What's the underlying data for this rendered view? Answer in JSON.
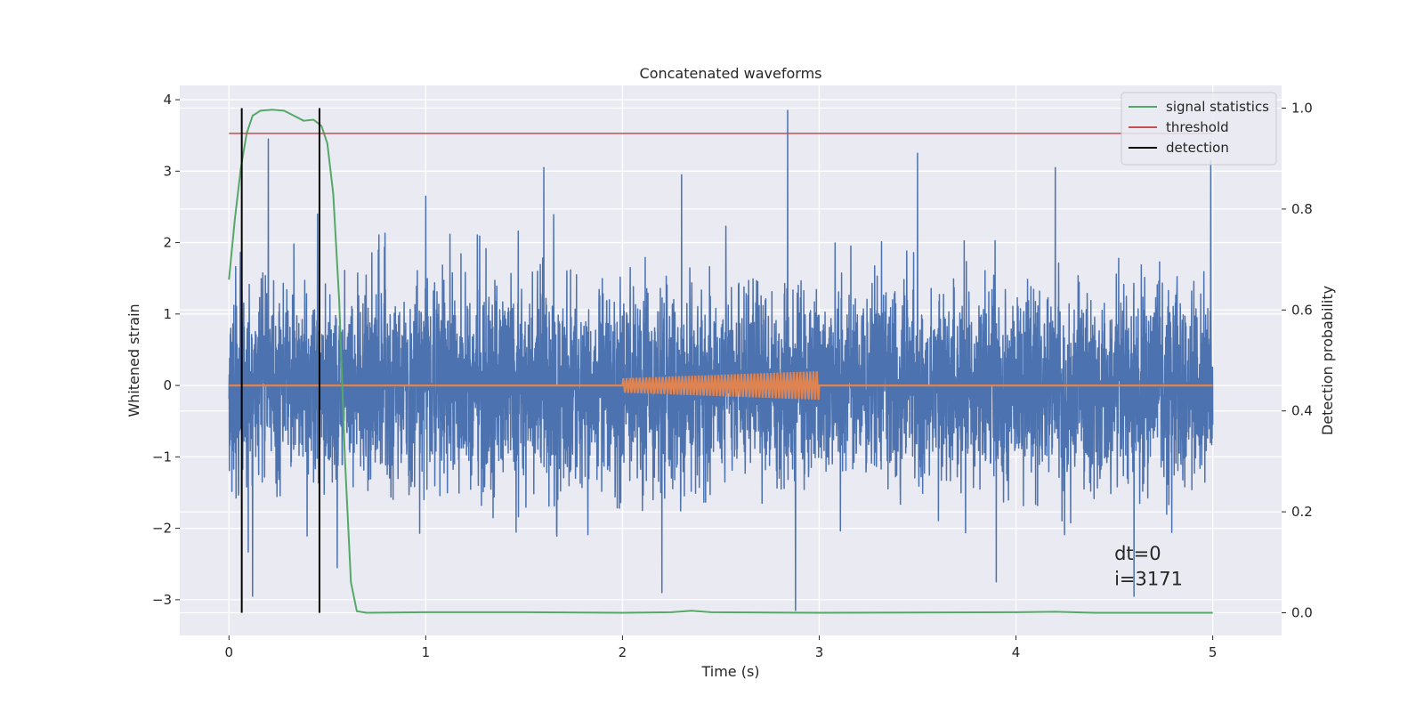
{
  "chart_data": {
    "type": "line",
    "title": "Concatenated waveforms",
    "xlabel": "Time (s)",
    "ylabel": "Whitened strain",
    "y2label": "Detection probability",
    "xlim": [
      -0.25,
      5.35
    ],
    "ylim": [
      -3.5,
      4.2
    ],
    "y2lim": [
      -0.045,
      1.045
    ],
    "xticks": [
      0,
      1,
      2,
      3,
      4,
      5
    ],
    "xtick_labels": [
      "0",
      "1",
      "2",
      "3",
      "4",
      "5"
    ],
    "yticks": [
      -3,
      -2,
      -1,
      0,
      1,
      2,
      3,
      4
    ],
    "ytick_labels": [
      "−3",
      "−2",
      "−1",
      "0",
      "1",
      "2",
      "3",
      "4"
    ],
    "y2ticks": [
      0.0,
      0.2,
      0.4,
      0.6,
      0.8,
      1.0
    ],
    "y2tick_labels": [
      "0.0",
      "0.2",
      "0.4",
      "0.6",
      "0.8",
      "1.0"
    ],
    "grid": true,
    "legend_position": "top-right",
    "series": [
      {
        "name": "",
        "kind": "noise",
        "axis": "left",
        "color": "#4c72b0",
        "x_range": [
          0,
          5
        ],
        "samples": 5000,
        "sigma": 0.95,
        "peaks": [
          {
            "x": 0.2,
            "y": 3.45
          },
          {
            "x": 0.45,
            "y": 2.4
          },
          {
            "x": 1.0,
            "y": 2.65
          },
          {
            "x": 1.6,
            "y": 3.05
          },
          {
            "x": 2.3,
            "y": 2.95
          },
          {
            "x": 2.84,
            "y": 3.85
          },
          {
            "x": 3.5,
            "y": 3.25
          },
          {
            "x": 4.2,
            "y": 3.05
          },
          {
            "x": 4.99,
            "y": 3.15
          }
        ],
        "troughs": [
          {
            "x": 0.12,
            "y": -2.95
          },
          {
            "x": 0.55,
            "y": -2.55
          },
          {
            "x": 2.2,
            "y": -2.9
          },
          {
            "x": 2.88,
            "y": -3.15
          },
          {
            "x": 3.9,
            "y": -2.75
          },
          {
            "x": 4.6,
            "y": -2.95
          }
        ]
      },
      {
        "name": "",
        "kind": "chirp",
        "axis": "left",
        "color": "#dd8452",
        "x_range": [
          0,
          5
        ],
        "chirp_range": [
          2.0,
          3.0
        ],
        "amplitude_start": 0.1,
        "amplitude_end": 0.2,
        "cycles": 60
      },
      {
        "name": "signal statistics",
        "kind": "line",
        "axis": "right",
        "color": "#55a868",
        "points": [
          [
            0.0,
            0.66
          ],
          [
            0.03,
            0.78
          ],
          [
            0.06,
            0.88
          ],
          [
            0.09,
            0.95
          ],
          [
            0.12,
            0.985
          ],
          [
            0.16,
            0.995
          ],
          [
            0.22,
            0.997
          ],
          [
            0.28,
            0.995
          ],
          [
            0.33,
            0.985
          ],
          [
            0.38,
            0.975
          ],
          [
            0.43,
            0.977
          ],
          [
            0.47,
            0.965
          ],
          [
            0.5,
            0.93
          ],
          [
            0.53,
            0.83
          ],
          [
            0.56,
            0.62
          ],
          [
            0.59,
            0.3
          ],
          [
            0.62,
            0.06
          ],
          [
            0.65,
            0.003
          ],
          [
            0.7,
            0.0
          ],
          [
            1.0,
            0.001
          ],
          [
            1.5,
            0.001
          ],
          [
            2.0,
            0.0
          ],
          [
            2.25,
            0.001
          ],
          [
            2.35,
            0.004
          ],
          [
            2.45,
            0.001
          ],
          [
            3.0,
            0.0
          ],
          [
            4.0,
            0.001
          ],
          [
            4.2,
            0.002
          ],
          [
            4.4,
            0.0
          ],
          [
            5.0,
            0.0
          ]
        ]
      },
      {
        "name": "threshold",
        "kind": "hline",
        "axis": "right",
        "color": "#c44e52",
        "x_range": [
          0.0,
          5.0
        ],
        "y": 0.95
      },
      {
        "name": "detection",
        "kind": "vlines",
        "axis": "right",
        "color": "#000000",
        "x": [
          0.065,
          0.46
        ],
        "y_range": [
          0.0,
          1.0
        ]
      }
    ],
    "annotations": [
      {
        "text": "dt=0",
        "x": 4.5,
        "y": 0.105
      },
      {
        "text": "i=3171",
        "x": 4.5,
        "y": 0.055
      }
    ]
  }
}
